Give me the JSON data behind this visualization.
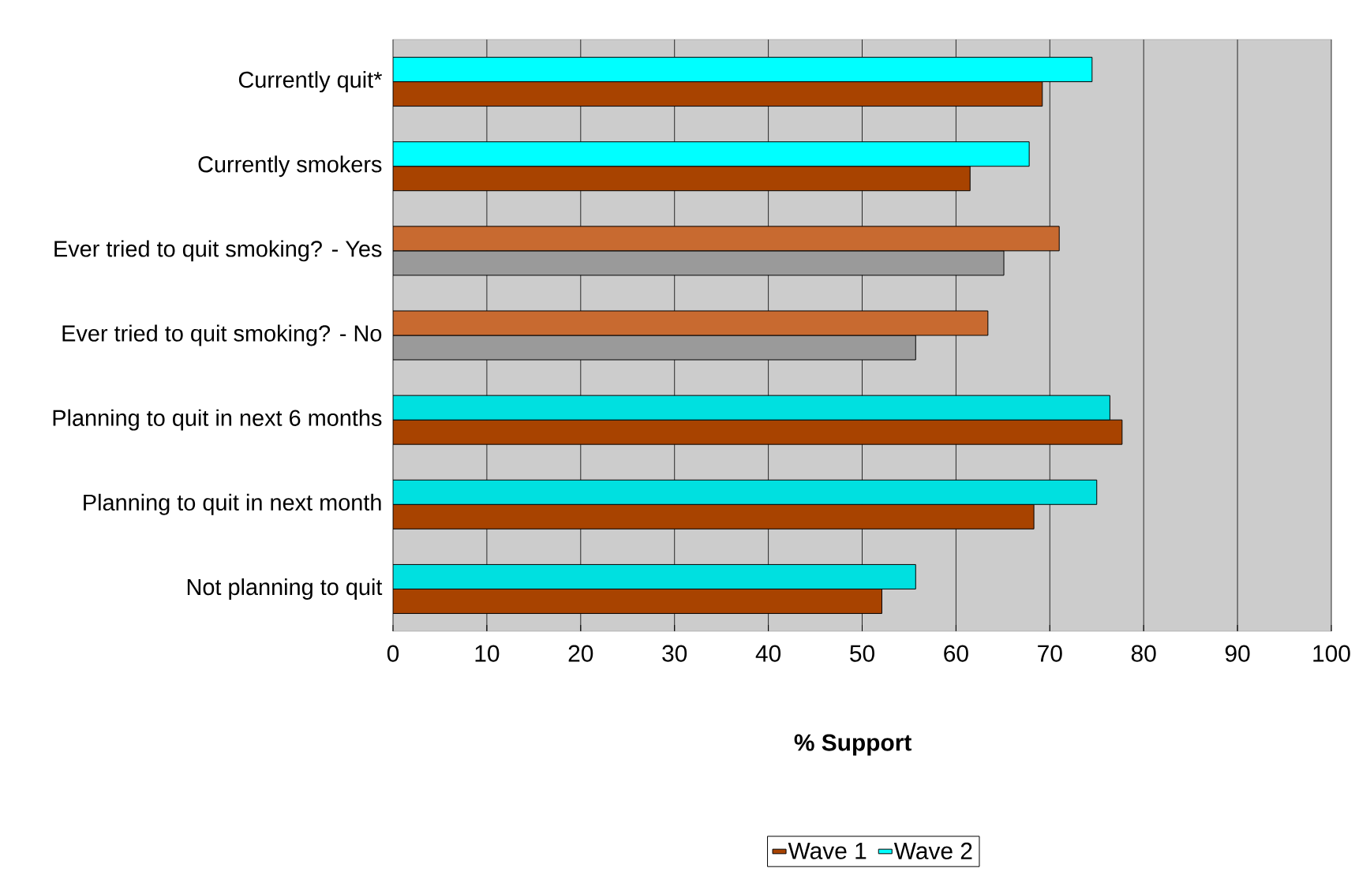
{
  "chart_data": {
    "type": "bar",
    "orientation": "horizontal",
    "xlabel": "% Support",
    "categories": [
      "Currently quit*",
      "Currently smokers",
      "Ever tried to quit smoking? - Yes",
      "Ever tried to quit smoking? - No",
      "Planning to quit in next 6 months",
      "Planning to quit in next month",
      "Not planning to quit"
    ],
    "series": [
      {
        "name": "Wave 1",
        "color": "#a84300",
        "colors": [
          "#a84300",
          "#a84300",
          "#9a9a9a",
          "#9a9a9a",
          "#a84300",
          "#a84300",
          "#a84300"
        ],
        "values": [
          69.2,
          61.5,
          65.1,
          55.7,
          77.7,
          68.3,
          52.1
        ]
      },
      {
        "name": "Wave 2",
        "color": "#00ffff",
        "colors": [
          "#00ffff",
          "#00ffff",
          "#c86a30",
          "#c86a30",
          "#00e0e0",
          "#00e0e0",
          "#00e0e0"
        ],
        "values": [
          74.5,
          67.8,
          71.0,
          63.4,
          76.4,
          75.0,
          55.7
        ]
      }
    ],
    "xlim": [
      0,
      100
    ],
    "xticks": [
      0,
      10,
      20,
      30,
      40,
      50,
      60,
      70,
      80,
      90,
      100
    ],
    "grid": "x",
    "legend": "bottom"
  }
}
